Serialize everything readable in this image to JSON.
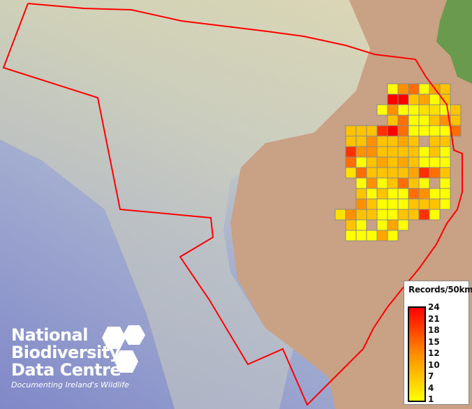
{
  "legend": {
    "title": "Records/50km",
    "ticks": [
      "24",
      "21",
      "18",
      "15",
      "12",
      "10",
      "7",
      "4",
      "1"
    ],
    "colors": {
      "max": "#ff0000",
      "mid": "#ff8c00",
      "min": "#ffff00"
    }
  },
  "logo": {
    "line1": "National",
    "line2": "Biodiversity",
    "line3": "Data Centre",
    "tagline": "Documenting Ireland's Wildlife"
  },
  "boundary_color": "#ff0000",
  "grid": {
    "rows": [
      [
        null,
        null,
        null,
        null,
        null,
        1,
        12,
        15,
        1,
        10,
        7
      ],
      [
        null,
        null,
        null,
        null,
        null,
        24,
        24,
        7,
        10,
        1,
        7
      ],
      [
        null,
        null,
        null,
        null,
        1,
        12,
        1,
        1,
        4,
        4,
        1,
        7
      ],
      [
        null,
        null,
        null,
        null,
        null,
        7,
        15,
        1,
        1,
        7,
        12,
        7
      ],
      [
        null,
        7,
        7,
        7,
        20,
        24,
        15,
        1,
        1,
        1,
        1,
        15
      ],
      [
        null,
        7,
        7,
        12,
        7,
        7,
        10,
        7,
        null,
        7,
        7
      ],
      [
        null,
        20,
        12,
        12,
        7,
        7,
        7,
        7,
        1,
        7,
        1
      ],
      [
        null,
        15,
        1,
        7,
        10,
        7,
        10,
        7,
        1,
        1,
        1
      ],
      [
        null,
        4,
        15,
        7,
        7,
        7,
        7,
        10,
        20,
        15,
        7
      ],
      [
        null,
        null,
        1,
        12,
        1,
        7,
        15,
        7,
        1,
        null,
        1
      ],
      [
        null,
        null,
        7,
        1,
        7,
        1,
        1,
        15,
        12,
        1,
        1
      ],
      [
        null,
        null,
        12,
        7,
        1,
        1,
        1,
        7,
        7,
        7,
        1
      ],
      [
        4,
        12,
        7,
        7,
        1,
        1,
        7,
        7,
        20,
        1
      ],
      [
        null,
        7,
        1,
        null,
        1,
        10,
        1
      ],
      [
        null,
        1,
        1,
        1,
        10,
        1
      ]
    ]
  }
}
